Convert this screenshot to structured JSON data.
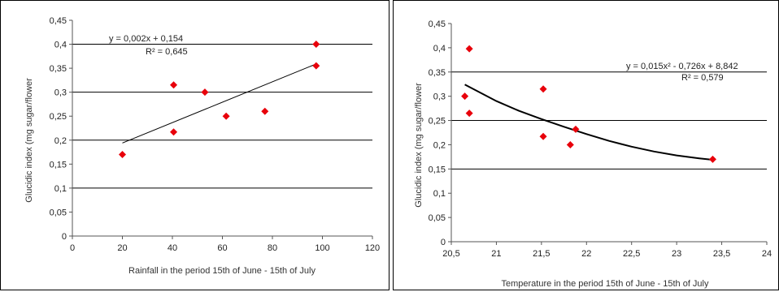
{
  "chart_data": [
    {
      "type": "scatter",
      "xlabel": "Rainfall in the period 15th of June - 15th of July",
      "ylabel": "Glucidic index (mg sugar/flower",
      "xlim": [
        0,
        120
      ],
      "ylim": [
        0,
        0.45
      ],
      "xticks": [
        0,
        20,
        40,
        60,
        80,
        100,
        120
      ],
      "yticks": [
        0,
        0.05,
        0.1,
        0.15,
        0.2,
        0.25,
        0.3,
        0.35,
        0.4,
        0.45
      ],
      "xtick_labels": [
        "0",
        "20",
        "40",
        "60",
        "80",
        "100",
        "120"
      ],
      "ytick_labels": [
        "0",
        "0,05",
        "0,1",
        "0,15",
        "0,2",
        "0,25",
        "0,3",
        "0,35",
        "0,4",
        "0,45"
      ],
      "gridlines": [
        0.1,
        0.2,
        0.3,
        0.4
      ],
      "points": [
        {
          "x": 20,
          "y": 0.17
        },
        {
          "x": 40.5,
          "y": 0.315
        },
        {
          "x": 40.5,
          "y": 0.217
        },
        {
          "x": 53,
          "y": 0.3
        },
        {
          "x": 61.5,
          "y": 0.25
        },
        {
          "x": 77,
          "y": 0.26
        },
        {
          "x": 97.5,
          "y": 0.4
        },
        {
          "x": 97.5,
          "y": 0.355
        }
      ],
      "trendline": {
        "kind": "linear",
        "x": [
          20,
          98
        ],
        "y": [
          0.194,
          0.36
        ],
        "equation": "y = 0,002x + 0,154",
        "r2": "R² = 0,645"
      },
      "marker_color": "#e8000b"
    },
    {
      "type": "scatter",
      "xlabel": "Temperature in the period 15th of June - 15th of July",
      "ylabel": "Glucidic index (mg sugar/flower",
      "xlim": [
        20.5,
        24
      ],
      "ylim": [
        0,
        0.45
      ],
      "xticks": [
        20.5,
        21,
        21.5,
        22,
        22.5,
        23,
        23.5,
        24
      ],
      "yticks": [
        0,
        0.05,
        0.1,
        0.15,
        0.2,
        0.25,
        0.3,
        0.35,
        0.4,
        0.45
      ],
      "xtick_labels": [
        "20,5",
        "21",
        "21,5",
        "22",
        "22,5",
        "23",
        "23,5",
        "24"
      ],
      "ytick_labels": [
        "0",
        "0,05",
        "0,1",
        "0,15",
        "0,2",
        "0,25",
        "0,3",
        "0,35",
        "0,4",
        "0,45"
      ],
      "gridlines": [
        0.15,
        0.25,
        0.35
      ],
      "points": [
        {
          "x": 20.65,
          "y": 0.3
        },
        {
          "x": 20.7,
          "y": 0.398
        },
        {
          "x": 20.7,
          "y": 0.265
        },
        {
          "x": 21.52,
          "y": 0.315
        },
        {
          "x": 21.52,
          "y": 0.217
        },
        {
          "x": 21.82,
          "y": 0.2
        },
        {
          "x": 21.88,
          "y": 0.232
        },
        {
          "x": 23.4,
          "y": 0.17
        }
      ],
      "trendline": {
        "kind": "polynomial",
        "x": [
          20.65,
          21,
          21.25,
          21.5,
          21.75,
          22,
          22.25,
          22.5,
          22.75,
          23,
          23.25,
          23.4
        ],
        "y": [
          0.324,
          0.29,
          0.27,
          0.253,
          0.237,
          0.222,
          0.208,
          0.196,
          0.186,
          0.178,
          0.172,
          0.169
        ],
        "equation": "y = 0,015x² - 0,726x + 8,842",
        "r2": "R² = 0,579"
      },
      "marker_color": "#e8000b"
    }
  ]
}
